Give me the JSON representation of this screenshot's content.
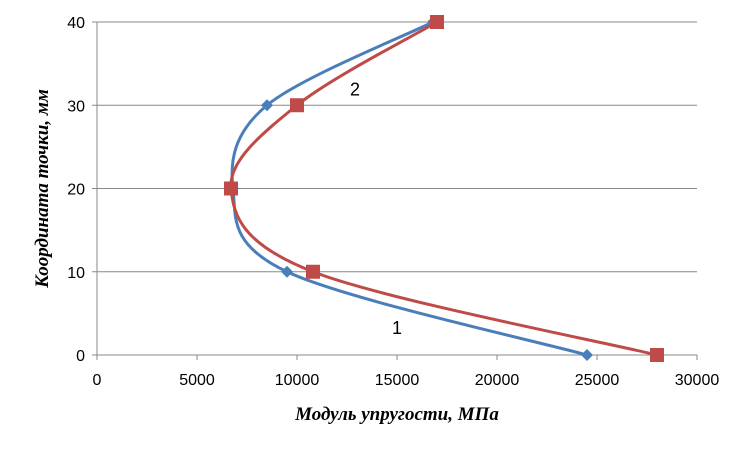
{
  "chart_data": {
    "type": "scatter",
    "title": "",
    "xlabel": "Модуль упругости, МПа",
    "ylabel": "Координата точки, мм",
    "xlim": [
      0,
      30000
    ],
    "ylim": [
      0,
      40
    ],
    "x_ticks": [
      "0",
      "5000",
      "10000",
      "15000",
      "20000",
      "25000",
      "30000"
    ],
    "y_ticks": [
      "0",
      "10",
      "20",
      "30",
      "40"
    ],
    "grid": "horizontal",
    "legend": "none",
    "series": [
      {
        "name": "1",
        "color": "#4a7ebb",
        "marker": "diamond",
        "smooth": true,
        "points": [
          {
            "x": 24500,
            "y": 0
          },
          {
            "x": 9500,
            "y": 10
          },
          {
            "x": 6800,
            "y": 20
          },
          {
            "x": 8500,
            "y": 30
          },
          {
            "x": 16800,
            "y": 40
          }
        ]
      },
      {
        "name": "2",
        "color": "#be4b48",
        "marker": "square",
        "smooth": true,
        "points": [
          {
            "x": 28000,
            "y": 0
          },
          {
            "x": 10800,
            "y": 10
          },
          {
            "x": 6700,
            "y": 20
          },
          {
            "x": 10000,
            "y": 30
          },
          {
            "x": 17000,
            "y": 40
          }
        ]
      }
    ]
  }
}
